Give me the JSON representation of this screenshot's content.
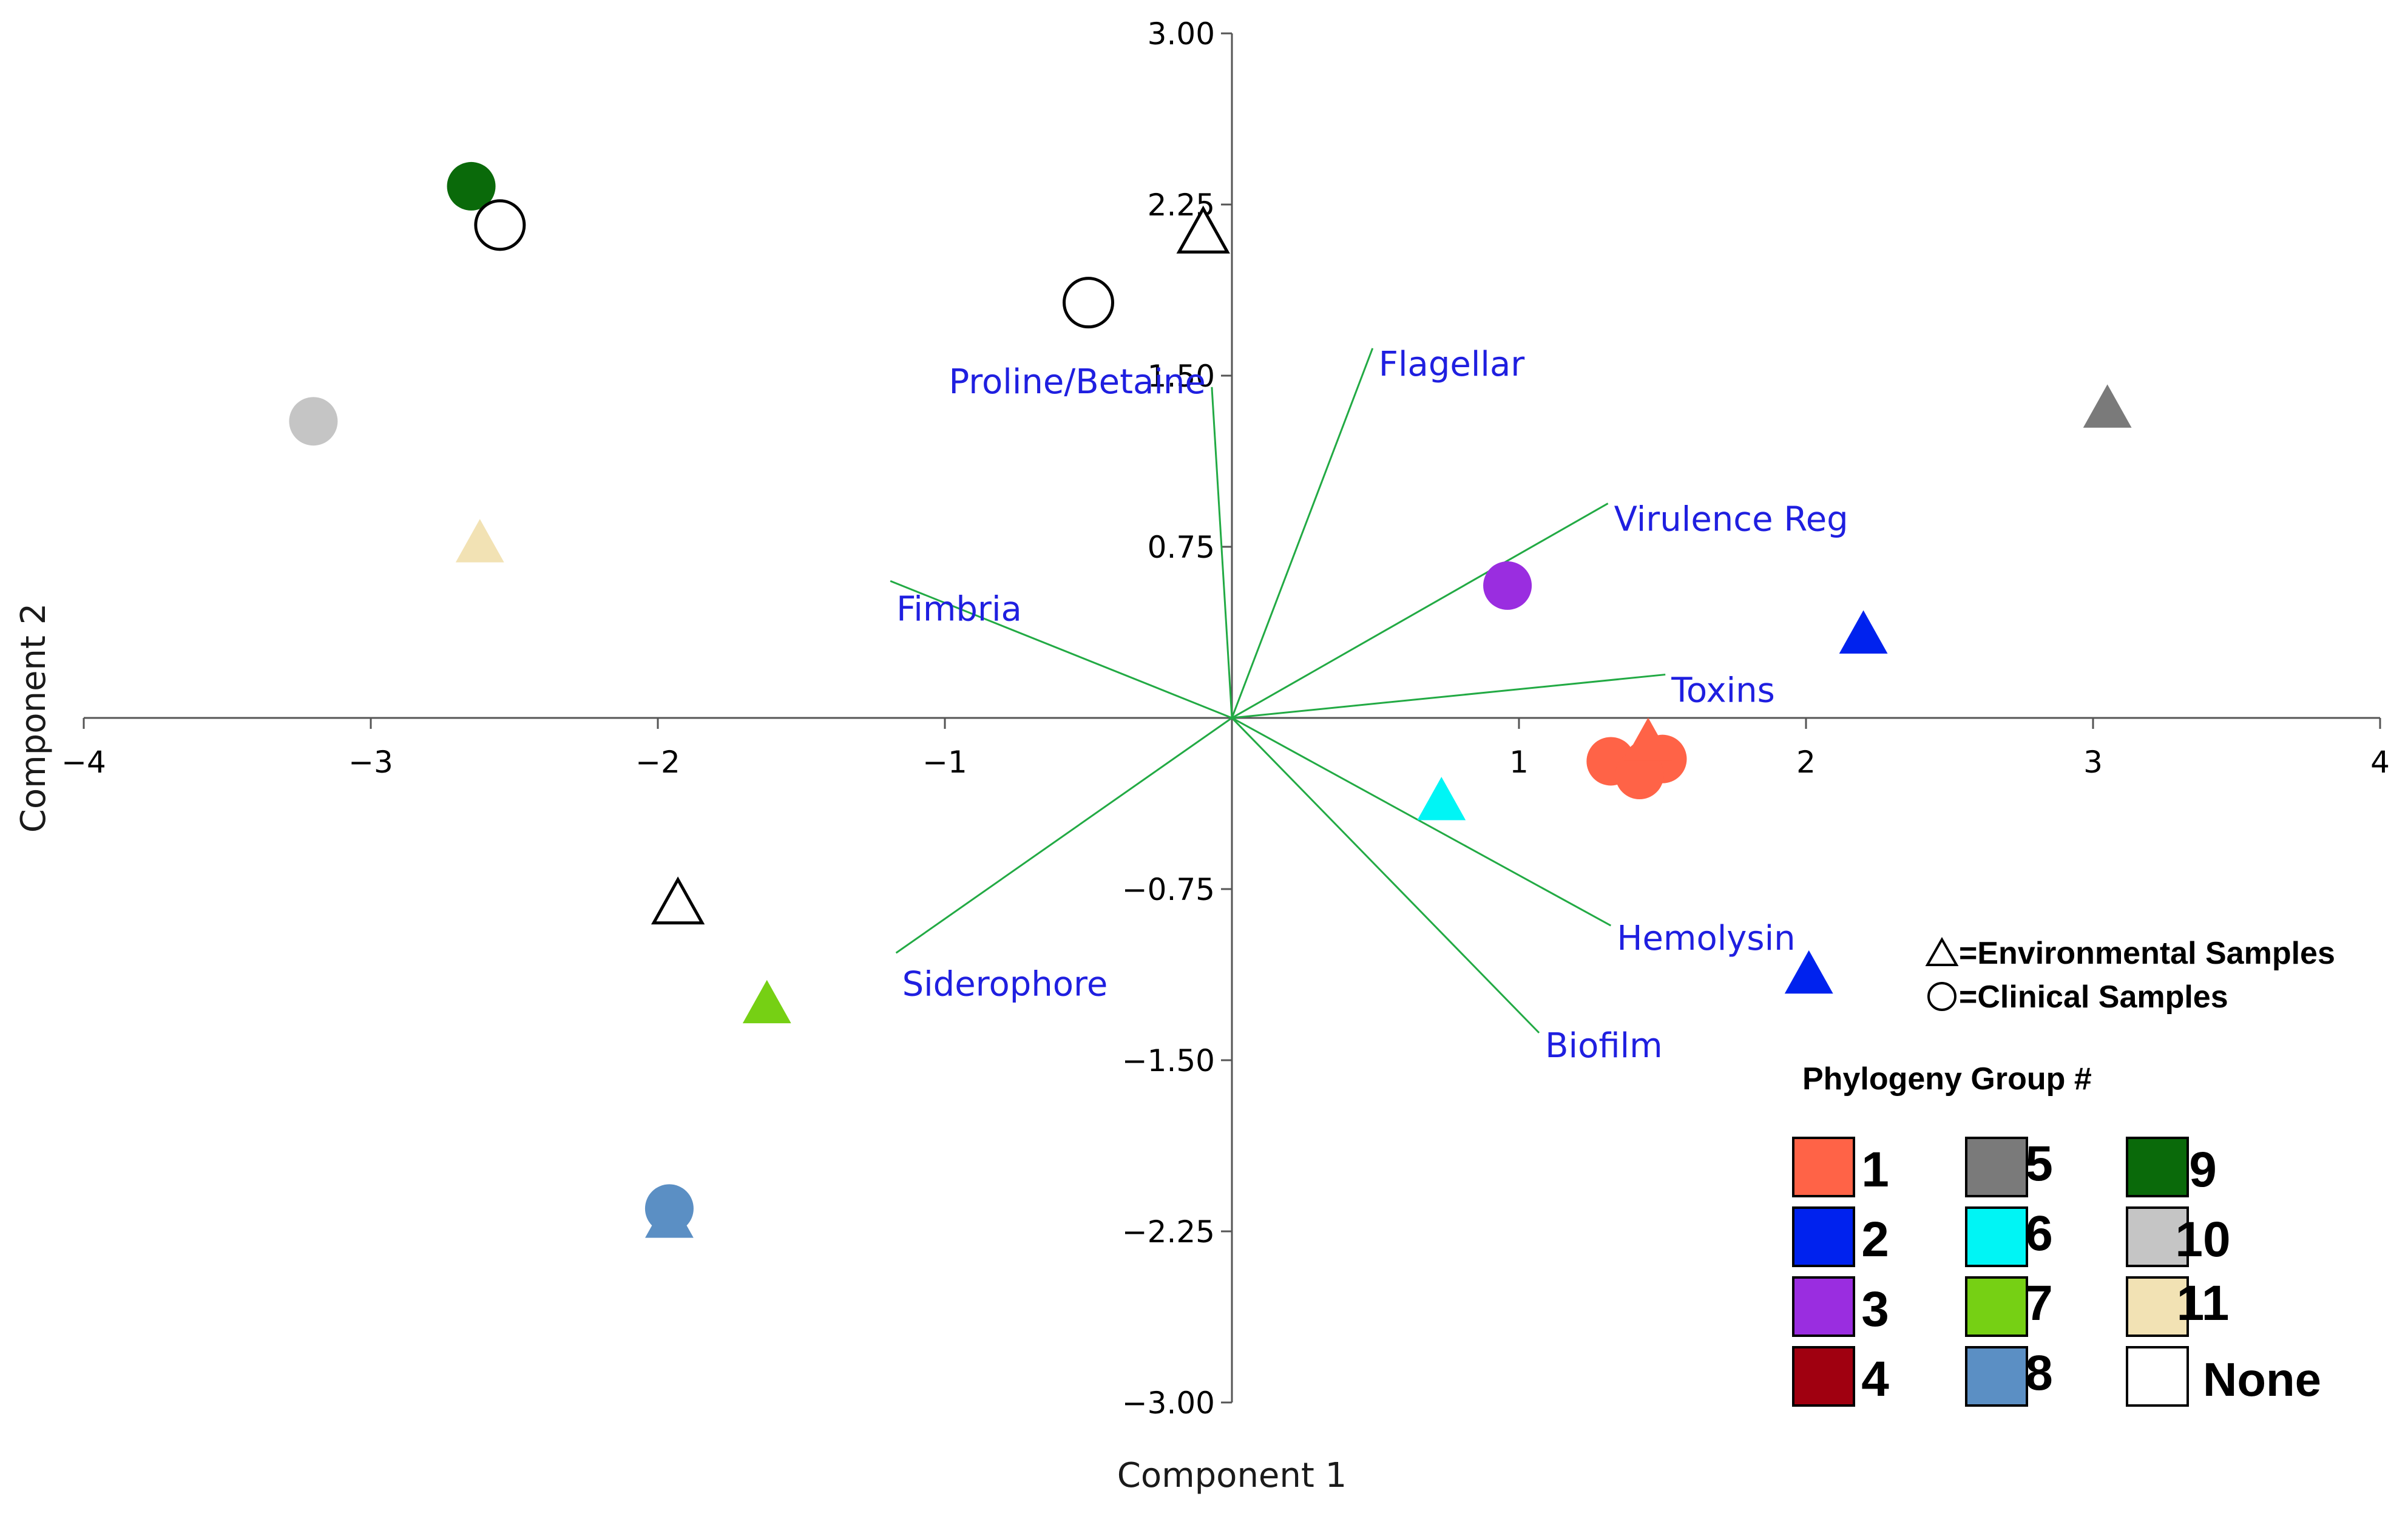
{
  "chart_data": {
    "type": "scatter",
    "xlabel": "Component 1",
    "ylabel": "Component 2",
    "xlim": [
      -4,
      4
    ],
    "ylim": [
      -3,
      3
    ],
    "x_ticks": [
      {
        "value": -4,
        "label": "−4"
      },
      {
        "value": -3,
        "label": "−3"
      },
      {
        "value": -2,
        "label": "−2"
      },
      {
        "value": -1,
        "label": "−1"
      },
      {
        "value": 1,
        "label": "1"
      },
      {
        "value": 2,
        "label": "2"
      },
      {
        "value": 3,
        "label": "3"
      },
      {
        "value": 4,
        "label": "4"
      }
    ],
    "y_ticks": [
      {
        "value": 3,
        "label": "3.00"
      },
      {
        "value": 2.25,
        "label": "2.25"
      },
      {
        "value": 1.5,
        "label": "1.50"
      },
      {
        "value": 0.75,
        "label": "0.75"
      },
      {
        "value": -0.75,
        "label": "−0.75"
      },
      {
        "value": -1.5,
        "label": "−1.50"
      },
      {
        "value": -2.25,
        "label": "−2.25"
      },
      {
        "value": -3,
        "label": "−3.00"
      }
    ],
    "grid": false,
    "vectors": [
      {
        "name": "Proline/Betaine",
        "x": -0.07,
        "y": 1.45
      },
      {
        "name": "Flagellar",
        "x": 0.49,
        "y": 1.62
      },
      {
        "name": "Virulence Reg",
        "x": 1.31,
        "y": 0.94
      },
      {
        "name": "Fimbria",
        "x": -1.19,
        "y": 0.6
      },
      {
        "name": "Toxins",
        "x": 1.51,
        "y": 0.19
      },
      {
        "name": "Hemolysin",
        "x": 1.32,
        "y": -0.91
      },
      {
        "name": "Biofilm",
        "x": 1.07,
        "y": -1.38
      },
      {
        "name": "Siderophore",
        "x": -1.17,
        "y": -1.03
      }
    ],
    "points": [
      {
        "x": -2.65,
        "y": 2.33,
        "group": "9",
        "sample": "clinical"
      },
      {
        "x": -2.55,
        "y": 2.16,
        "group": "None",
        "sample": "clinical"
      },
      {
        "x": -0.1,
        "y": 2.12,
        "group": "None",
        "sample": "environmental"
      },
      {
        "x": -0.5,
        "y": 1.82,
        "group": "None",
        "sample": "clinical"
      },
      {
        "x": -3.2,
        "y": 1.3,
        "group": "10",
        "sample": "clinical"
      },
      {
        "x": -2.62,
        "y": 0.76,
        "group": "11",
        "sample": "environmental"
      },
      {
        "x": 0.96,
        "y": 0.58,
        "group": "3",
        "sample": "clinical"
      },
      {
        "x": 3.05,
        "y": 1.35,
        "group": "5",
        "sample": "environmental"
      },
      {
        "x": 2.2,
        "y": 0.36,
        "group": "2",
        "sample": "environmental"
      },
      {
        "x": 1.32,
        "y": -0.19,
        "group": "1",
        "sample": "clinical"
      },
      {
        "x": 1.45,
        "y": -0.2,
        "group": "1",
        "sample": "clinical"
      },
      {
        "x": 1.5,
        "y": -0.18,
        "group": "1",
        "sample": "clinical"
      },
      {
        "x": 1.42,
        "y": -0.25,
        "group": "1",
        "sample": "clinical"
      },
      {
        "x": 1.45,
        "y": -0.11,
        "group": "1",
        "sample": "environmental"
      },
      {
        "x": 0.73,
        "y": -0.37,
        "group": "6",
        "sample": "environmental"
      },
      {
        "x": 2.01,
        "y": -1.13,
        "group": "2",
        "sample": "environmental"
      },
      {
        "x": -1.93,
        "y": -0.82,
        "group": "None",
        "sample": "environmental"
      },
      {
        "x": -1.62,
        "y": -1.26,
        "group": "7",
        "sample": "environmental"
      },
      {
        "x": -1.96,
        "y": -2.2,
        "group": "8",
        "sample": "environmental"
      },
      {
        "x": -1.96,
        "y": -2.15,
        "group": "8",
        "sample": "clinical"
      }
    ],
    "sample_legend": [
      {
        "symbol": "triangle",
        "label": "=Environmental Samples"
      },
      {
        "symbol": "circle",
        "label": "=Clinical Samples"
      }
    ],
    "group_legend_title": "Phylogeny Group #",
    "groups": [
      {
        "label": "1",
        "color": "#ff6347"
      },
      {
        "label": "2",
        "color": "#0022ee"
      },
      {
        "label": "3",
        "color": "#9a2de0"
      },
      {
        "label": "4",
        "color": "#a00010"
      },
      {
        "label": "5",
        "color": "#7a7a7a"
      },
      {
        "label": "6",
        "color": "#00f5f5"
      },
      {
        "label": "7",
        "color": "#76d014"
      },
      {
        "label": "8",
        "color": "#5b8fc4"
      },
      {
        "label": "9",
        "color": "#0a6a0a"
      },
      {
        "label": "10",
        "color": "#c5c5c5"
      },
      {
        "label": "11",
        "color": "#f2e2b4"
      },
      {
        "label": "None",
        "color": "#ffffff"
      }
    ],
    "legend_placement": "bottom-right",
    "colors": {
      "vector_line": "#22aa44",
      "vector_label": "#1f1fe0",
      "axis": "#555555"
    }
  }
}
